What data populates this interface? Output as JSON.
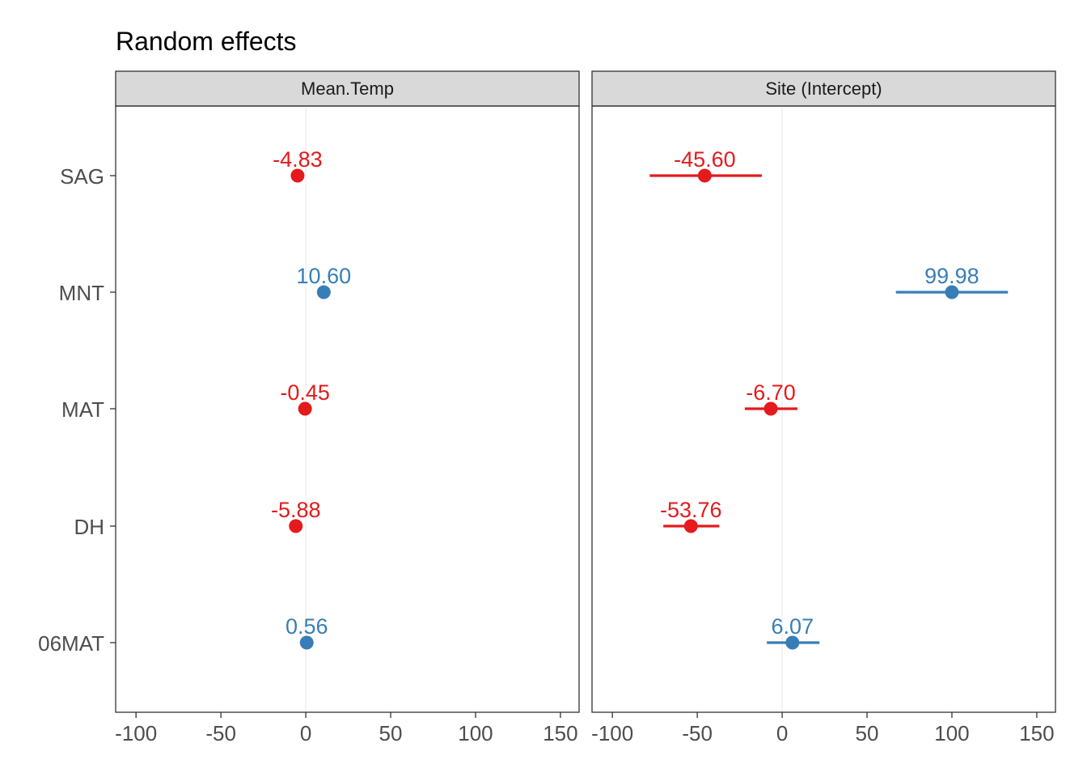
{
  "chart_data": {
    "type": "scatter",
    "title": "Random effects",
    "xlabel": "",
    "ylabel": "",
    "grid": "vertical zero line only",
    "colors": {
      "negative": "#e41a1c",
      "positive": "#377eb8"
    },
    "categories": [
      "SAG",
      "MNT",
      "MAT",
      "DH",
      "06MAT"
    ],
    "x_ticks": [
      -100,
      -50,
      0,
      50,
      100,
      150
    ],
    "x_tick_labels": [
      "-100",
      "-50",
      "0",
      "50",
      "100",
      "150"
    ],
    "xlim": [
      -112,
      161
    ],
    "panels": [
      {
        "strip": "Mean.Temp",
        "points": [
          {
            "group": "SAG",
            "value": -4.83,
            "label": "-4.83",
            "lo": -4.83,
            "hi": -4.83
          },
          {
            "group": "MNT",
            "value": 10.6,
            "label": "10.60",
            "lo": 10.6,
            "hi": 10.6
          },
          {
            "group": "MAT",
            "value": -0.45,
            "label": "-0.45",
            "lo": -0.45,
            "hi": -0.45
          },
          {
            "group": "DH",
            "value": -5.88,
            "label": "-5.88",
            "lo": -5.88,
            "hi": -5.88
          },
          {
            "group": "06MAT",
            "value": 0.56,
            "label": "0.56",
            "lo": 0.56,
            "hi": 0.56
          }
        ]
      },
      {
        "strip": "Site (Intercept)",
        "points": [
          {
            "group": "SAG",
            "value": -45.6,
            "label": "-45.60",
            "lo": -78,
            "hi": -12
          },
          {
            "group": "MNT",
            "value": 99.98,
            "label": "99.98",
            "lo": 67,
            "hi": 133
          },
          {
            "group": "MAT",
            "value": -6.7,
            "label": "-6.70",
            "lo": -22,
            "hi": 9
          },
          {
            "group": "DH",
            "value": -53.76,
            "label": "-53.76",
            "lo": -70,
            "hi": -37
          },
          {
            "group": "06MAT",
            "value": 6.07,
            "label": "6.07",
            "lo": -9,
            "hi": 22
          }
        ]
      }
    ]
  }
}
